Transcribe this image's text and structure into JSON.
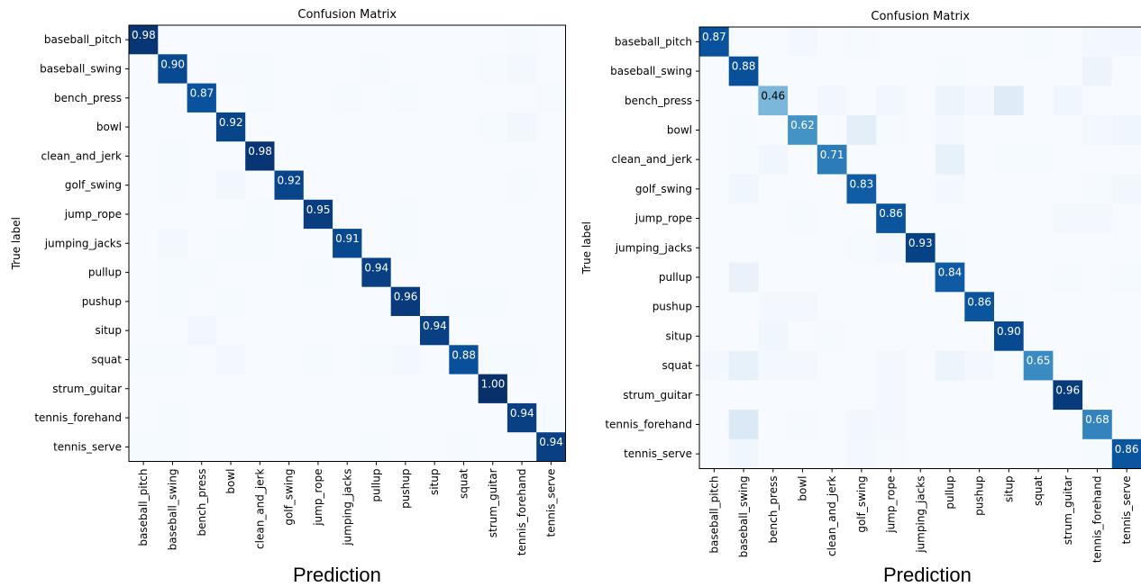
{
  "labels": [
    "baseball_pitch",
    "baseball_swing",
    "bench_press",
    "bowl",
    "clean_and_jerk",
    "golf_swing",
    "jump_rope",
    "jumping_jacks",
    "pullup",
    "pushup",
    "situp",
    "squat",
    "strum_guitar",
    "tennis_forehand",
    "tennis_serve"
  ],
  "caption": "Prediction",
  "chart_data": [
    {
      "type": "heatmap",
      "title": "Confusion Matrix",
      "xlabel": "",
      "ylabel": "True label",
      "colormap": "Blues",
      "vmin": 0,
      "vmax": 1,
      "matrix": [
        [
          0.98,
          0,
          0,
          0,
          0,
          0,
          0,
          0,
          0,
          0,
          0,
          0,
          0,
          0.01,
          0
        ],
        [
          0,
          0.9,
          0,
          0.01,
          0.01,
          0,
          0,
          0,
          0.01,
          0,
          0,
          0,
          0.01,
          0.02,
          0
        ],
        [
          0,
          0,
          0.87,
          0,
          0.01,
          0,
          0,
          0.01,
          0,
          0.01,
          0,
          0,
          0,
          0,
          0.01
        ],
        [
          0,
          0,
          0,
          0.92,
          0,
          0,
          0,
          0,
          0,
          0,
          0,
          0,
          0.01,
          0.03,
          0
        ],
        [
          0,
          0.01,
          0,
          0,
          0.98,
          0,
          0,
          0,
          0,
          0,
          0,
          0,
          0,
          0,
          0
        ],
        [
          0,
          0.01,
          0,
          0.03,
          0,
          0.92,
          0,
          0,
          0,
          0,
          0,
          0,
          0,
          0.01,
          0
        ],
        [
          0,
          0,
          0,
          0,
          0.01,
          0,
          0.95,
          0,
          0,
          0.01,
          0,
          0,
          0,
          0,
          0
        ],
        [
          0,
          0.02,
          0,
          0.01,
          0.01,
          0,
          0,
          0.91,
          0,
          0.01,
          0,
          0,
          0,
          0,
          0
        ],
        [
          0,
          0.01,
          0.01,
          0,
          0,
          0,
          0.01,
          0,
          0.94,
          0,
          0,
          0,
          0,
          0,
          0
        ],
        [
          0,
          0.01,
          0,
          0.01,
          0,
          0,
          0,
          0,
          0,
          0.96,
          0,
          0.01,
          0.01,
          0,
          0
        ],
        [
          0,
          0,
          0.03,
          0,
          0,
          0,
          0,
          0,
          0,
          0,
          0.94,
          0,
          0,
          0,
          0
        ],
        [
          0.01,
          0.01,
          0,
          0.02,
          0,
          0,
          0.01,
          0,
          0.01,
          0.02,
          0,
          0.88,
          0.01,
          0.01,
          0
        ],
        [
          0,
          0,
          0,
          0,
          0,
          0,
          0,
          0,
          0,
          0,
          0,
          0,
          1.0,
          0,
          0
        ],
        [
          0,
          0.01,
          0,
          0,
          0,
          0,
          0,
          0,
          0,
          0,
          0,
          0,
          0,
          0.94,
          0.01
        ],
        [
          0.01,
          0.01,
          0,
          0,
          0,
          0,
          0,
          0,
          0.01,
          0,
          0,
          0.01,
          0,
          0,
          0.94
        ]
      ]
    },
    {
      "type": "heatmap",
      "title": "Confusion Matrix",
      "xlabel": "",
      "ylabel": "True label",
      "colormap": "Blues",
      "vmin": 0,
      "vmax": 1,
      "matrix": [
        [
          0.87,
          0,
          0,
          0.02,
          0,
          0.01,
          0,
          0,
          0,
          0,
          0,
          0.01,
          0,
          0.02,
          0.03
        ],
        [
          0,
          0.88,
          0,
          0,
          0,
          0,
          0,
          0,
          0.01,
          0,
          0,
          0,
          0,
          0.05,
          0
        ],
        [
          0,
          0,
          0.46,
          0,
          0.03,
          0,
          0.03,
          0,
          0.05,
          0.02,
          0.12,
          0,
          0.04,
          0,
          0
        ],
        [
          0,
          0.01,
          0,
          0.62,
          0,
          0.1,
          0.01,
          0,
          0.02,
          0,
          0,
          0,
          0,
          0.02,
          0.04
        ],
        [
          0,
          0.01,
          0.04,
          0,
          0.71,
          0,
          0,
          0,
          0.08,
          0,
          0.01,
          0.01,
          0,
          0,
          0
        ],
        [
          0,
          0.04,
          0,
          0,
          0,
          0.83,
          0,
          0,
          0.02,
          0,
          0,
          0,
          0,
          0.01,
          0.03
        ],
        [
          0,
          0,
          0,
          0.01,
          0,
          0,
          0.86,
          0,
          0,
          0,
          0,
          0,
          0.02,
          0.02,
          0
        ],
        [
          0,
          0,
          0,
          0,
          0,
          0.01,
          0.02,
          0.93,
          0.01,
          0,
          0,
          0,
          0,
          0,
          0
        ],
        [
          0,
          0.07,
          0,
          0,
          0,
          0,
          0,
          0,
          0.84,
          0,
          0,
          0,
          0.01,
          0,
          0.01
        ],
        [
          0,
          0,
          0.02,
          0.02,
          0,
          0,
          0,
          0,
          0,
          0.86,
          0.01,
          0,
          0,
          0,
          0
        ],
        [
          0,
          0,
          0.04,
          0,
          0.01,
          0,
          0,
          0,
          0,
          0,
          0.9,
          0,
          0,
          0,
          0
        ],
        [
          0.02,
          0.08,
          0.02,
          0.02,
          0,
          0,
          0.02,
          0,
          0.05,
          0.02,
          0,
          0.65,
          0,
          0.01,
          0
        ],
        [
          0,
          0,
          0,
          0,
          0,
          0,
          0.02,
          0,
          0,
          0,
          0,
          0,
          0.96,
          0,
          0
        ],
        [
          0,
          0.14,
          0,
          0.01,
          0,
          0.03,
          0.02,
          0,
          0,
          0,
          0,
          0,
          0,
          0.68,
          0
        ],
        [
          0,
          0.04,
          0,
          0,
          0,
          0.02,
          0.01,
          0,
          0,
          0,
          0,
          0,
          0,
          0.01,
          0.86
        ]
      ]
    }
  ]
}
